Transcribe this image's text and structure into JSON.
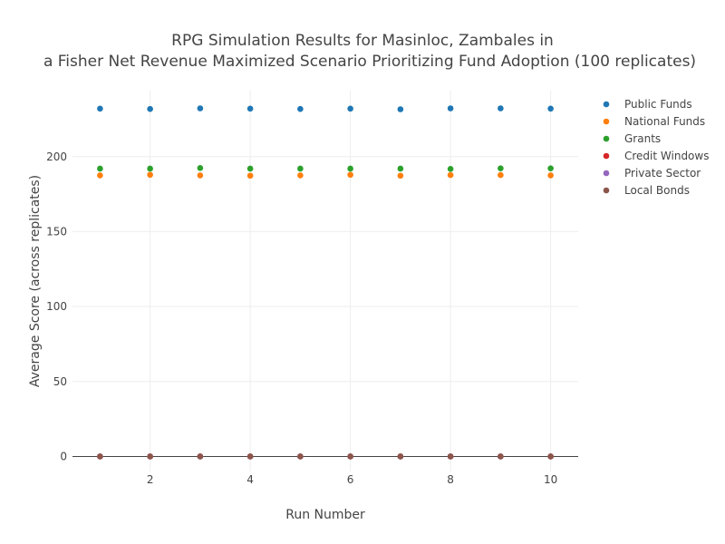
{
  "chart_data": {
    "type": "scatter",
    "title_lines": [
      "RPG Simulation Results for Masinloc, Zambales in",
      "a Fisher Net Revenue Maximized Scenario Prioritizing Fund Adoption (100 replicates)"
    ],
    "xlabel": "Run Number",
    "ylabel": "Average Score (across replicates)",
    "xlim": [
      0.45,
      10.55
    ],
    "ylim": [
      -10,
      244
    ],
    "x_ticks": [
      2,
      4,
      6,
      8,
      10
    ],
    "y_ticks": [
      0,
      50,
      100,
      150,
      200
    ],
    "grid": true,
    "legend_position": "top-right",
    "x": [
      1,
      2,
      3,
      4,
      5,
      6,
      7,
      8,
      9,
      10
    ],
    "series": [
      {
        "name": "Public Funds",
        "color": "#1f77b4",
        "values": [
          232.0,
          231.8,
          232.2,
          232.0,
          231.8,
          232.0,
          231.6,
          232.2,
          232.2,
          232.0
        ]
      },
      {
        "name": "National Funds",
        "color": "#ff7f0e",
        "values": [
          187.5,
          187.9,
          187.5,
          187.3,
          187.5,
          187.9,
          187.3,
          187.7,
          187.7,
          187.5
        ]
      },
      {
        "name": "Grants",
        "color": "#2ca02c",
        "values": [
          192.0,
          192.0,
          192.4,
          192.0,
          192.0,
          192.0,
          192.0,
          191.8,
          192.2,
          192.2
        ]
      },
      {
        "name": "Credit Windows",
        "color": "#d62728",
        "values": [
          0,
          0,
          0,
          0,
          0,
          0,
          0,
          0,
          0,
          0
        ]
      },
      {
        "name": "Private Sector",
        "color": "#9467bd",
        "values": [
          0,
          0,
          0,
          0,
          0,
          0,
          0,
          0,
          0,
          0
        ]
      },
      {
        "name": "Local Bonds",
        "color": "#8c564b",
        "values": [
          0,
          0,
          0,
          0,
          0,
          0,
          0,
          0,
          0,
          0
        ]
      }
    ]
  }
}
